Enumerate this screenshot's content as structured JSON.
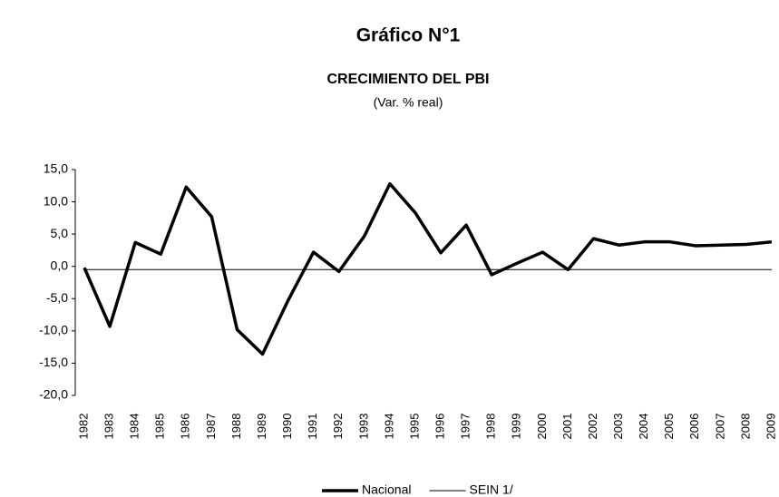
{
  "chart_data": {
    "type": "line",
    "title": "Gráfico N°1",
    "subtitle": "CRECIMIENTO DEL PBI",
    "unit_note": "(Var. % real)",
    "categories": [
      "1982",
      "1983",
      "1984",
      "1985",
      "1986",
      "1987",
      "1988",
      "1989",
      "1990",
      "1991",
      "1992",
      "1993",
      "1994",
      "1995",
      "1996",
      "1997",
      "1998",
      "1999",
      "2000",
      "2001",
      "2002",
      "2003",
      "2004",
      "2005",
      "2006",
      "2007",
      "2008",
      "2009"
    ],
    "series": [
      {
        "name": "Nacional",
        "color": "#000000",
        "width": 3.5,
        "values": [
          -0.2,
          -9.3,
          3.7,
          1.9,
          12.3,
          7.7,
          -9.8,
          -13.6,
          -5.3,
          2.2,
          -0.8,
          4.7,
          12.8,
          8.3,
          2.1,
          6.4,
          -1.3,
          0.5,
          2.2,
          -0.5,
          4.3,
          3.3,
          3.8,
          3.8,
          3.2,
          3.3,
          3.4,
          3.8
        ]
      },
      {
        "name": "SEIN 1/",
        "color": "#000000",
        "width": 1,
        "values": [
          -0.5,
          -0.5,
          -0.5,
          -0.5,
          -0.5,
          -0.5,
          -0.5,
          -0.5,
          -0.5,
          -0.5,
          -0.5,
          -0.5,
          -0.5,
          -0.5,
          -0.5,
          -0.5,
          -0.5,
          -0.5,
          -0.5,
          -0.5,
          -0.5,
          -0.5,
          -0.5,
          -0.5,
          -0.5,
          -0.5,
          -0.5,
          -0.5
        ]
      }
    ],
    "ylim": [
      -20,
      15
    ],
    "yticks": [
      {
        "value": -20,
        "label": "-20,0"
      },
      {
        "value": -15,
        "label": "-15,0"
      },
      {
        "value": -10,
        "label": "-10,0"
      },
      {
        "value": -5,
        "label": "-5,0"
      },
      {
        "value": 0,
        "label": "0,0"
      },
      {
        "value": 5,
        "label": "5,0"
      },
      {
        "value": 10,
        "label": "10,0"
      },
      {
        "value": 15,
        "label": "15,0"
      }
    ],
    "legend": "bottom"
  }
}
